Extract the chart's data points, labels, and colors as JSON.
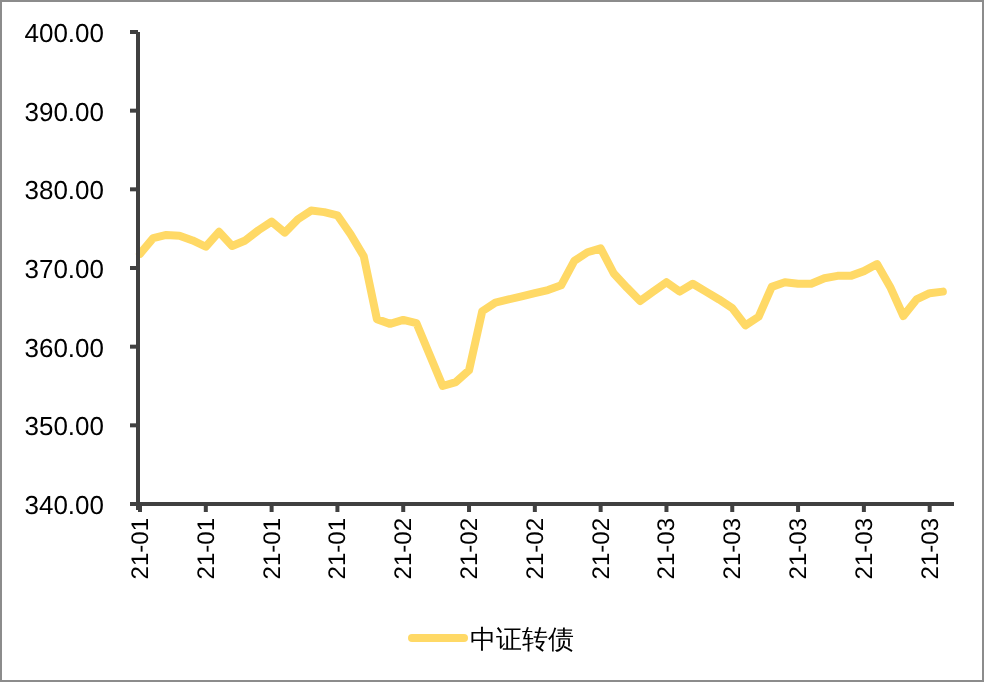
{
  "chart_data": {
    "type": "line",
    "categories": [
      "21-01",
      null,
      null,
      null,
      null,
      "21-01",
      null,
      null,
      null,
      null,
      "21-01",
      null,
      null,
      null,
      null,
      "21-01",
      null,
      null,
      null,
      null,
      "21-02",
      null,
      null,
      null,
      null,
      "21-02",
      null,
      null,
      null,
      null,
      "21-02",
      null,
      null,
      null,
      null,
      "21-02",
      null,
      null,
      null,
      null,
      "21-03",
      null,
      null,
      null,
      null,
      "21-03",
      null,
      null,
      null,
      null,
      "21-03",
      null,
      null,
      null,
      null,
      "21-03",
      null,
      null,
      null,
      null,
      "21-03",
      null
    ],
    "series": [
      {
        "name": "中证转债",
        "color": "#ffd966",
        "values": [
          371.8,
          373.8,
          374.2,
          374.1,
          373.5,
          372.7,
          374.6,
          372.8,
          373.5,
          374.8,
          375.9,
          374.5,
          376.2,
          377.3,
          377.1,
          376.7,
          374.3,
          371.5,
          363.5,
          362.9,
          363.4,
          363.0,
          359.0,
          355.0,
          355.5,
          357.0,
          364.5,
          365.6,
          366.0,
          366.4,
          366.8,
          367.2,
          367.8,
          370.9,
          372.0,
          372.5,
          369.3,
          367.5,
          365.8,
          367.0,
          368.2,
          367.0,
          368.0,
          367.0,
          366.0,
          364.9,
          362.7,
          363.8,
          367.6,
          368.2,
          368.0,
          368.0,
          368.7,
          369.0,
          369.0,
          369.6,
          370.5,
          367.6,
          363.9,
          366.0,
          366.8,
          367.0
        ]
      }
    ],
    "ylim": [
      340,
      400
    ],
    "yticks": [
      {
        "value": 340,
        "label": "340.00"
      },
      {
        "value": 350,
        "label": "350.00"
      },
      {
        "value": 360,
        "label": "360.00"
      },
      {
        "value": 370,
        "label": "370.00"
      },
      {
        "value": 380,
        "label": "380.00"
      },
      {
        "value": 390,
        "label": "390.00"
      },
      {
        "value": 400,
        "label": "400.00"
      }
    ],
    "legend": "bottom",
    "marker": "none",
    "line_style": "solid"
  }
}
